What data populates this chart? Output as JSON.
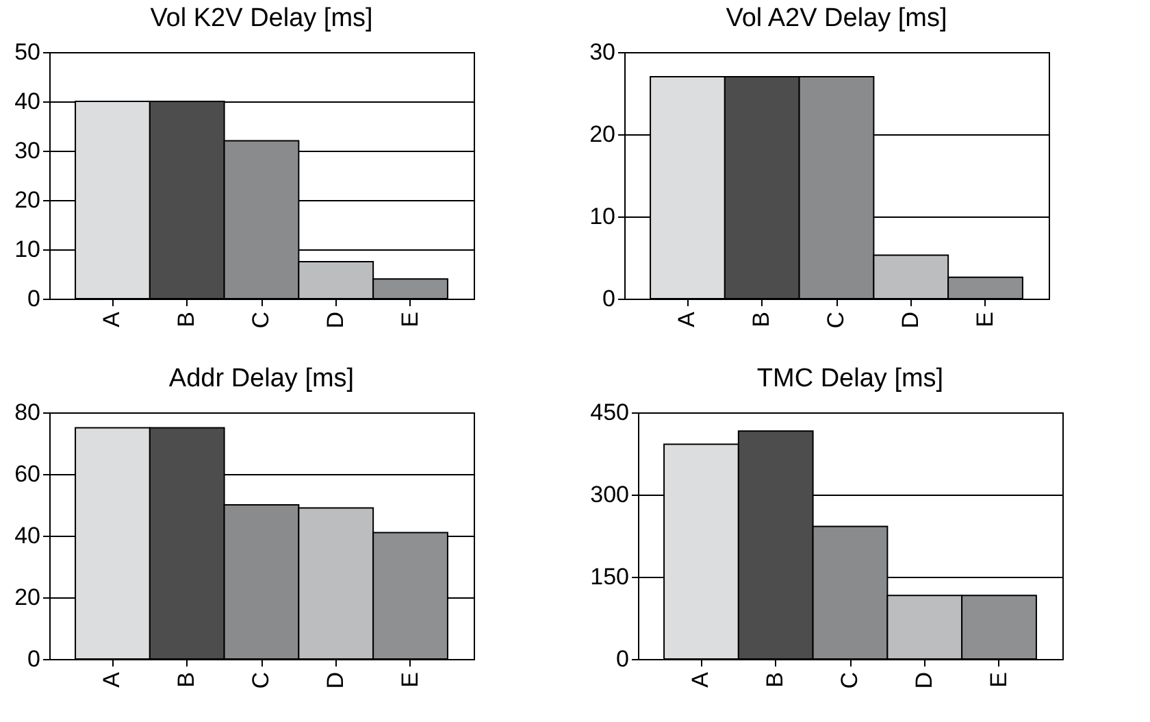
{
  "chart_data": [
    {
      "type": "bar",
      "title": "Vol K2V Delay [ms]",
      "categories": [
        "A",
        "B",
        "C",
        "D",
        "E"
      ],
      "values": [
        40,
        40,
        32,
        7.5,
        4
      ],
      "colors": [
        "#dcdddf",
        "#4d4d4d",
        "#8a8b8d",
        "#bcbdbf",
        "#8f9092"
      ],
      "ylim": [
        0,
        50
      ],
      "yticks": [
        0,
        10,
        20,
        30,
        40,
        50
      ],
      "grid": "y"
    },
    {
      "type": "bar",
      "title": "Vol A2V Delay [ms]",
      "categories": [
        "A",
        "B",
        "C",
        "D",
        "E"
      ],
      "values": [
        27,
        27,
        27,
        5.3,
        2.6
      ],
      "colors": [
        "#dcdddf",
        "#4d4d4d",
        "#8a8b8d",
        "#bcbdbf",
        "#8f9092"
      ],
      "ylim": [
        0,
        30
      ],
      "yticks": [
        0,
        10,
        20,
        30
      ],
      "grid": "y"
    },
    {
      "type": "bar",
      "title": "Addr Delay [ms]",
      "categories": [
        "A",
        "B",
        "C",
        "D",
        "E"
      ],
      "values": [
        75,
        75,
        50,
        49,
        41
      ],
      "colors": [
        "#dcdddf",
        "#4d4d4d",
        "#8a8b8d",
        "#bcbdbf",
        "#8f9092"
      ],
      "ylim": [
        0,
        80
      ],
      "yticks": [
        0,
        20,
        40,
        60,
        80
      ],
      "grid": "y"
    },
    {
      "type": "bar",
      "title": "TMC Delay [ms]",
      "categories": [
        "A",
        "B",
        "C",
        "D",
        "E"
      ],
      "values": [
        392,
        416,
        242,
        116,
        116
      ],
      "colors": [
        "#dcdddf",
        "#4d4d4d",
        "#8a8b8d",
        "#bcbdbf",
        "#8f9092"
      ],
      "ylim": [
        0,
        450
      ],
      "yticks": [
        0,
        150,
        300,
        450
      ],
      "grid": "y"
    }
  ]
}
